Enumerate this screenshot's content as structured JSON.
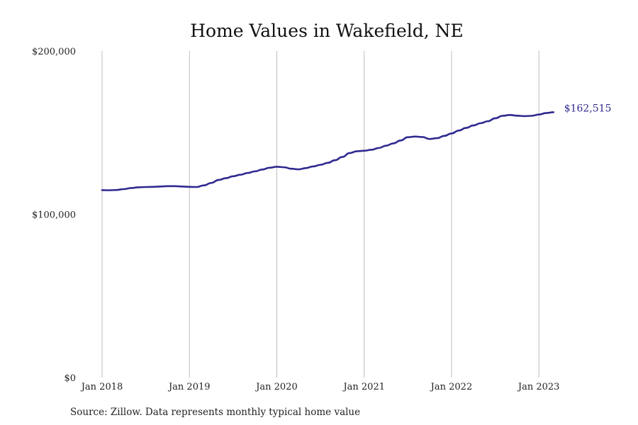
{
  "chart_data": {
    "type": "line",
    "title": "Home Values in Wakefield, NE",
    "source": "Source: Zillow. Data represents monthly typical home value",
    "xlabel": "",
    "ylabel": "",
    "ylim": [
      0,
      200000
    ],
    "y_ticks": [
      {
        "value": 0,
        "label": "$0"
      },
      {
        "value": 100000,
        "label": "$100,000"
      },
      {
        "value": 200000,
        "label": "$200,000"
      }
    ],
    "x_ticks": [
      {
        "date": "2018-01",
        "label": "Jan 2018"
      },
      {
        "date": "2019-01",
        "label": "Jan 2019"
      },
      {
        "date": "2020-01",
        "label": "Jan 2020"
      },
      {
        "date": "2021-01",
        "label": "Jan 2021"
      },
      {
        "date": "2022-01",
        "label": "Jan 2022"
      },
      {
        "date": "2023-01",
        "label": "Jan 2023"
      }
    ],
    "x_range": [
      "2018-01",
      "2023-11"
    ],
    "vertical_grid": true,
    "end_label": "$162,515",
    "colors": {
      "line": "#2e2a8f",
      "grid": "#bdbdbd"
    },
    "series": [
      {
        "x": [
          "2018-01",
          "2018-02",
          "2018-03",
          "2018-04",
          "2018-05",
          "2018-06",
          "2018-07",
          "2018-08",
          "2018-09",
          "2018-10",
          "2018-11",
          "2018-12",
          "2019-01",
          "2019-02",
          "2019-03",
          "2019-04",
          "2019-05",
          "2019-06",
          "2019-07",
          "2019-08",
          "2019-09",
          "2019-10",
          "2019-11",
          "2019-12",
          "2020-01",
          "2020-02",
          "2020-03",
          "2020-04",
          "2020-05",
          "2020-06",
          "2020-07",
          "2020-08",
          "2020-09",
          "2020-10",
          "2020-11",
          "2020-12",
          "2021-01",
          "2021-02",
          "2021-03",
          "2021-04",
          "2021-05",
          "2021-06",
          "2021-07",
          "2021-08",
          "2021-09",
          "2021-10",
          "2021-11",
          "2021-12",
          "2022-01",
          "2022-02",
          "2022-03",
          "2022-04",
          "2022-05",
          "2022-06",
          "2022-07",
          "2022-08",
          "2022-09",
          "2022-10",
          "2022-11",
          "2022-12",
          "2023-01",
          "2023-02",
          "2023-03"
        ],
        "values": [
          114800,
          114700,
          114900,
          115400,
          116100,
          116500,
          116700,
          116800,
          117000,
          117200,
          117200,
          117000,
          116800,
          116700,
          117700,
          119200,
          121000,
          122100,
          123300,
          124200,
          125300,
          126300,
          127400,
          128500,
          129100,
          128800,
          127900,
          127500,
          128300,
          129300,
          130300,
          131500,
          133100,
          135100,
          137500,
          138600,
          138900,
          139500,
          140600,
          142000,
          143400,
          145200,
          147200,
          147600,
          147300,
          146100,
          146600,
          148000,
          149500,
          151300,
          152900,
          154400,
          155800,
          157000,
          158800,
          160300,
          160800,
          160400,
          160100,
          160300,
          161100,
          162000,
          162515
        ]
      }
    ]
  }
}
